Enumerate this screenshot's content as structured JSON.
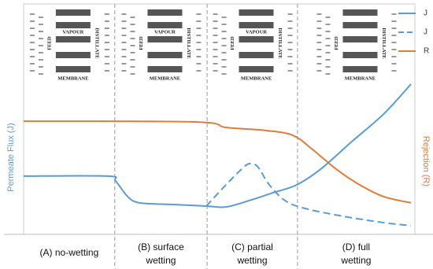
{
  "chart_data": {
    "type": "line",
    "y_label": "Permeate Flux (J)",
    "y2_label": "Rejection (R)",
    "xlim": [
      0,
      100
    ],
    "ylim": [
      0,
      100
    ],
    "legend": "upper right",
    "dividers": [
      23.3,
      46.9,
      70
    ],
    "regions": [
      [
        "(A) no-wetting"
      ],
      [
        "(B) surface",
        "wetting"
      ],
      [
        "(C) partial",
        "wetting"
      ],
      [
        "(D) full",
        "wetting"
      ]
    ],
    "panels": [
      [
        "FEED",
        "VAPOUR",
        "DISTILLATE",
        "MEMBRANE"
      ],
      [
        "FEED",
        "VAPOUR",
        "DISTILLATE",
        "MEMBRANE"
      ],
      [
        "FEED",
        "VAPOUR",
        "DISTILLATE",
        "MEMBRANE"
      ],
      [
        "FEED",
        "DISTILLATE",
        "MEMBRANE"
      ]
    ],
    "series": [
      {
        "name": "J",
        "color": "#5b9bd5",
        "dashed": false,
        "x": [
          0,
          21.5,
          23.5,
          26.6,
          29.6,
          37.6,
          46.7,
          51.7,
          57.7,
          63.8,
          69.8,
          75.9,
          83.9,
          92,
          99
        ],
        "values": [
          25.3,
          25.3,
          23.2,
          16.4,
          13.7,
          13,
          12.3,
          11.9,
          14.7,
          18.1,
          21.5,
          28.3,
          40.3,
          52.2,
          65.2
        ]
      },
      {
        "name": "J",
        "color": "#5b9bd5",
        "dashed": true,
        "x": [
          46.7,
          51.7,
          55.7,
          57.7,
          59.8,
          62.8,
          66.8,
          71.8,
          81.9,
          92,
          99
        ],
        "values": [
          12.3,
          21.5,
          28.3,
          30.7,
          29.4,
          21.5,
          14.7,
          11.3,
          7.8,
          5.1,
          3.8
        ]
      },
      {
        "name": "R",
        "color": "#e07b39",
        "dashed": false,
        "x": [
          0,
          43.7,
          51.7,
          61.8,
          68.8,
          73.8,
          79.9,
          85.9,
          92,
          99
        ],
        "values": [
          49.1,
          48.8,
          46.4,
          45.1,
          43,
          36.9,
          28.3,
          21.5,
          16.4,
          13.7
        ]
      }
    ]
  }
}
